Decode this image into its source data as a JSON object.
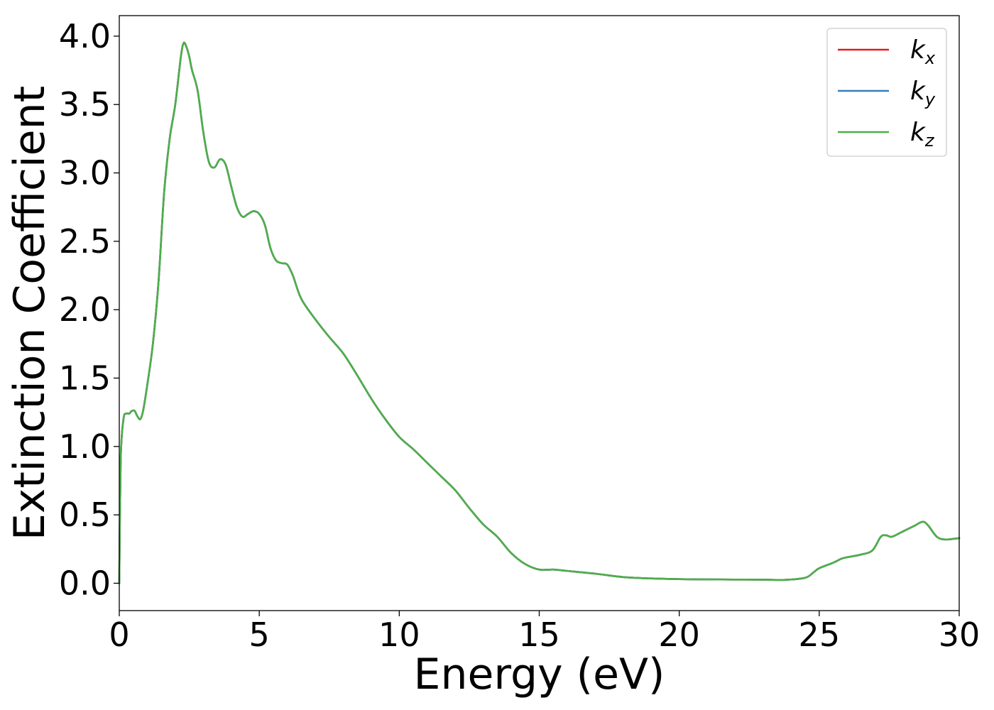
{
  "chart_data": {
    "type": "line",
    "title": "",
    "xlabel": "Energy (eV)",
    "ylabel": "Extinction Coefficient",
    "xlim": [
      0,
      30
    ],
    "ylim": [
      -0.2,
      4.15
    ],
    "xticks": [
      0,
      5,
      10,
      15,
      20,
      25,
      30
    ],
    "xtick_labels": [
      "0",
      "5",
      "10",
      "15",
      "20",
      "25",
      "30"
    ],
    "yticks": [
      0.0,
      0.5,
      1.0,
      1.5,
      2.0,
      2.5,
      3.0,
      3.5,
      4.0
    ],
    "ytick_labels": [
      "0.0",
      "0.5",
      "1.0",
      "1.5",
      "2.0",
      "2.5",
      "3.0",
      "3.5",
      "4.0"
    ],
    "grid": false,
    "legend_position": "top-right",
    "x": [
      0,
      0.05,
      0.15,
      0.25,
      0.35,
      0.45,
      0.55,
      0.65,
      0.75,
      0.85,
      1.0,
      1.2,
      1.4,
      1.6,
      1.8,
      2.0,
      2.2,
      2.3,
      2.4,
      2.5,
      2.6,
      2.8,
      3.0,
      3.2,
      3.4,
      3.6,
      3.8,
      4.0,
      4.2,
      4.4,
      4.6,
      4.8,
      5.0,
      5.2,
      5.4,
      5.6,
      5.8,
      6.0,
      6.2,
      6.5,
      7.0,
      7.5,
      8.0,
      8.5,
      9.0,
      9.5,
      10.0,
      10.5,
      11.0,
      11.5,
      12.0,
      12.5,
      13.0,
      13.5,
      14.0,
      14.5,
      15.0,
      15.5,
      16.0,
      17.0,
      18.0,
      19.0,
      20.0,
      21.0,
      22.0,
      23.0,
      23.8,
      24.5,
      24.8,
      25.0,
      25.5,
      25.8,
      26.0,
      26.5,
      26.9,
      27.2,
      27.4,
      27.6,
      28.0,
      28.4,
      28.7,
      28.9,
      29.2,
      29.5,
      30.0
    ],
    "series": [
      {
        "name": "k_x",
        "label_main": "k",
        "label_sub": "x",
        "color": "#e41a1c",
        "values": [
          0.0,
          0.9,
          1.2,
          1.24,
          1.24,
          1.26,
          1.26,
          1.22,
          1.2,
          1.26,
          1.45,
          1.75,
          2.2,
          2.85,
          3.25,
          3.5,
          3.85,
          3.95,
          3.92,
          3.85,
          3.75,
          3.6,
          3.3,
          3.08,
          3.04,
          3.1,
          3.06,
          2.9,
          2.75,
          2.68,
          2.7,
          2.72,
          2.7,
          2.62,
          2.45,
          2.36,
          2.34,
          2.33,
          2.25,
          2.08,
          1.93,
          1.8,
          1.68,
          1.52,
          1.35,
          1.2,
          1.07,
          0.98,
          0.88,
          0.78,
          0.68,
          0.55,
          0.43,
          0.34,
          0.22,
          0.14,
          0.1,
          0.1,
          0.09,
          0.07,
          0.045,
          0.035,
          0.03,
          0.028,
          0.027,
          0.026,
          0.025,
          0.04,
          0.08,
          0.11,
          0.15,
          0.18,
          0.19,
          0.21,
          0.24,
          0.34,
          0.35,
          0.34,
          0.38,
          0.42,
          0.45,
          0.42,
          0.34,
          0.32,
          0.33
        ]
      },
      {
        "name": "k_y",
        "label_main": "k",
        "label_sub": "y",
        "color": "#377eb8",
        "values": [
          0.0,
          0.9,
          1.2,
          1.24,
          1.24,
          1.26,
          1.26,
          1.22,
          1.2,
          1.26,
          1.45,
          1.75,
          2.2,
          2.85,
          3.25,
          3.5,
          3.85,
          3.95,
          3.92,
          3.85,
          3.75,
          3.6,
          3.3,
          3.08,
          3.04,
          3.1,
          3.06,
          2.9,
          2.75,
          2.68,
          2.7,
          2.72,
          2.7,
          2.62,
          2.45,
          2.36,
          2.34,
          2.33,
          2.25,
          2.08,
          1.93,
          1.8,
          1.68,
          1.52,
          1.35,
          1.2,
          1.07,
          0.98,
          0.88,
          0.78,
          0.68,
          0.55,
          0.43,
          0.34,
          0.22,
          0.14,
          0.1,
          0.1,
          0.09,
          0.07,
          0.045,
          0.035,
          0.03,
          0.028,
          0.027,
          0.026,
          0.025,
          0.04,
          0.08,
          0.11,
          0.15,
          0.18,
          0.19,
          0.21,
          0.24,
          0.34,
          0.35,
          0.34,
          0.38,
          0.42,
          0.45,
          0.42,
          0.34,
          0.32,
          0.33
        ]
      },
      {
        "name": "k_z",
        "label_main": "k",
        "label_sub": "z",
        "color": "#4daf4a",
        "values": [
          0.0,
          0.9,
          1.2,
          1.24,
          1.24,
          1.26,
          1.26,
          1.22,
          1.2,
          1.26,
          1.45,
          1.75,
          2.2,
          2.85,
          3.25,
          3.5,
          3.85,
          3.95,
          3.92,
          3.85,
          3.75,
          3.6,
          3.3,
          3.08,
          3.04,
          3.1,
          3.06,
          2.9,
          2.75,
          2.68,
          2.7,
          2.72,
          2.7,
          2.62,
          2.45,
          2.36,
          2.34,
          2.33,
          2.25,
          2.08,
          1.93,
          1.8,
          1.68,
          1.52,
          1.35,
          1.2,
          1.07,
          0.98,
          0.88,
          0.78,
          0.68,
          0.55,
          0.43,
          0.34,
          0.22,
          0.14,
          0.1,
          0.1,
          0.09,
          0.07,
          0.045,
          0.035,
          0.03,
          0.028,
          0.027,
          0.026,
          0.025,
          0.04,
          0.08,
          0.11,
          0.15,
          0.18,
          0.19,
          0.21,
          0.24,
          0.34,
          0.35,
          0.34,
          0.38,
          0.42,
          0.45,
          0.42,
          0.34,
          0.32,
          0.33
        ]
      }
    ]
  }
}
